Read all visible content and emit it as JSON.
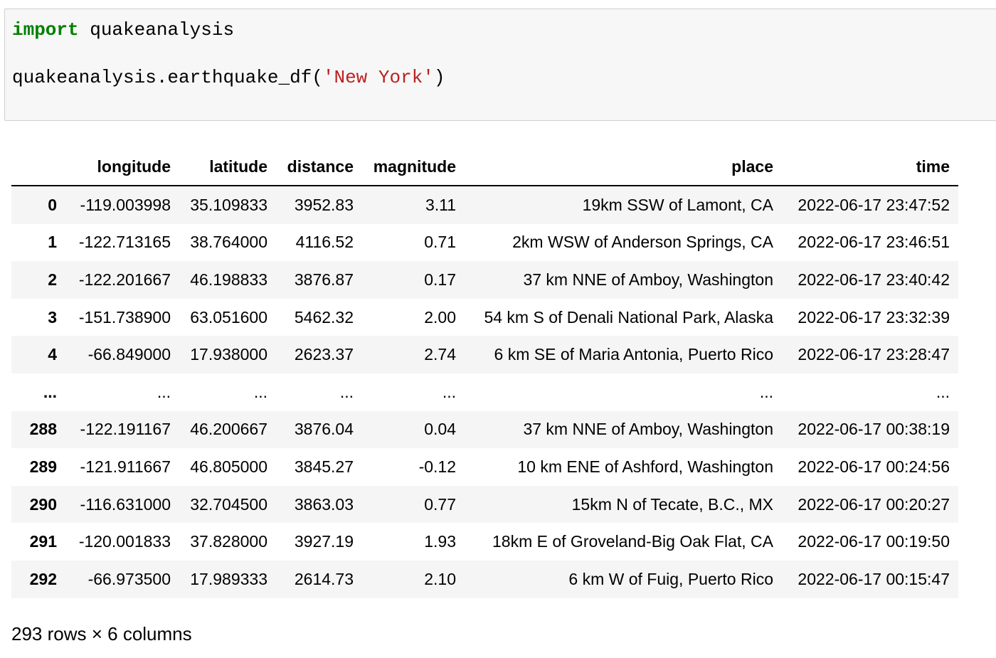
{
  "code_cell": {
    "line1_keyword": "import",
    "line1_module": " quakeanalysis",
    "line2_prefix": "quakeanalysis.earthquake_df(",
    "line2_string": "'New York'",
    "line2_suffix": ")"
  },
  "dataframe": {
    "columns": [
      "longitude",
      "latitude",
      "distance",
      "magnitude",
      "place",
      "time"
    ],
    "rows": [
      {
        "index": "0",
        "cells": [
          "-119.003998",
          "35.109833",
          "3952.83",
          "3.11",
          "19km SSW of Lamont, CA",
          "2022-06-17 23:47:52"
        ]
      },
      {
        "index": "1",
        "cells": [
          "-122.713165",
          "38.764000",
          "4116.52",
          "0.71",
          "2km WSW of Anderson Springs, CA",
          "2022-06-17 23:46:51"
        ]
      },
      {
        "index": "2",
        "cells": [
          "-122.201667",
          "46.198833",
          "3876.87",
          "0.17",
          "37 km NNE of Amboy, Washington",
          "2022-06-17 23:40:42"
        ]
      },
      {
        "index": "3",
        "cells": [
          "-151.738900",
          "63.051600",
          "5462.32",
          "2.00",
          "54 km S of Denali National Park, Alaska",
          "2022-06-17 23:32:39"
        ]
      },
      {
        "index": "4",
        "cells": [
          "-66.849000",
          "17.938000",
          "2623.37",
          "2.74",
          "6 km SE of Maria Antonia, Puerto Rico",
          "2022-06-17 23:28:47"
        ]
      },
      {
        "index": "...",
        "cells": [
          "...",
          "...",
          "...",
          "...",
          "...",
          "..."
        ]
      },
      {
        "index": "288",
        "cells": [
          "-122.191167",
          "46.200667",
          "3876.04",
          "0.04",
          "37 km NNE of Amboy, Washington",
          "2022-06-17 00:38:19"
        ]
      },
      {
        "index": "289",
        "cells": [
          "-121.911667",
          "46.805000",
          "3845.27",
          "-0.12",
          "10 km ENE of Ashford, Washington",
          "2022-06-17 00:24:56"
        ]
      },
      {
        "index": "290",
        "cells": [
          "-116.631000",
          "32.704500",
          "3863.03",
          "0.77",
          "15km N of Tecate, B.C., MX",
          "2022-06-17 00:20:27"
        ]
      },
      {
        "index": "291",
        "cells": [
          "-120.001833",
          "37.828000",
          "3927.19",
          "1.93",
          "18km E of Groveland-Big Oak Flat, CA",
          "2022-06-17 00:19:50"
        ]
      },
      {
        "index": "292",
        "cells": [
          "-66.973500",
          "17.989333",
          "2614.73",
          "2.10",
          "6 km W of Fuig, Puerto Rico",
          "2022-06-17 00:15:47"
        ]
      }
    ]
  },
  "shape_text": "293 rows × 6 columns"
}
